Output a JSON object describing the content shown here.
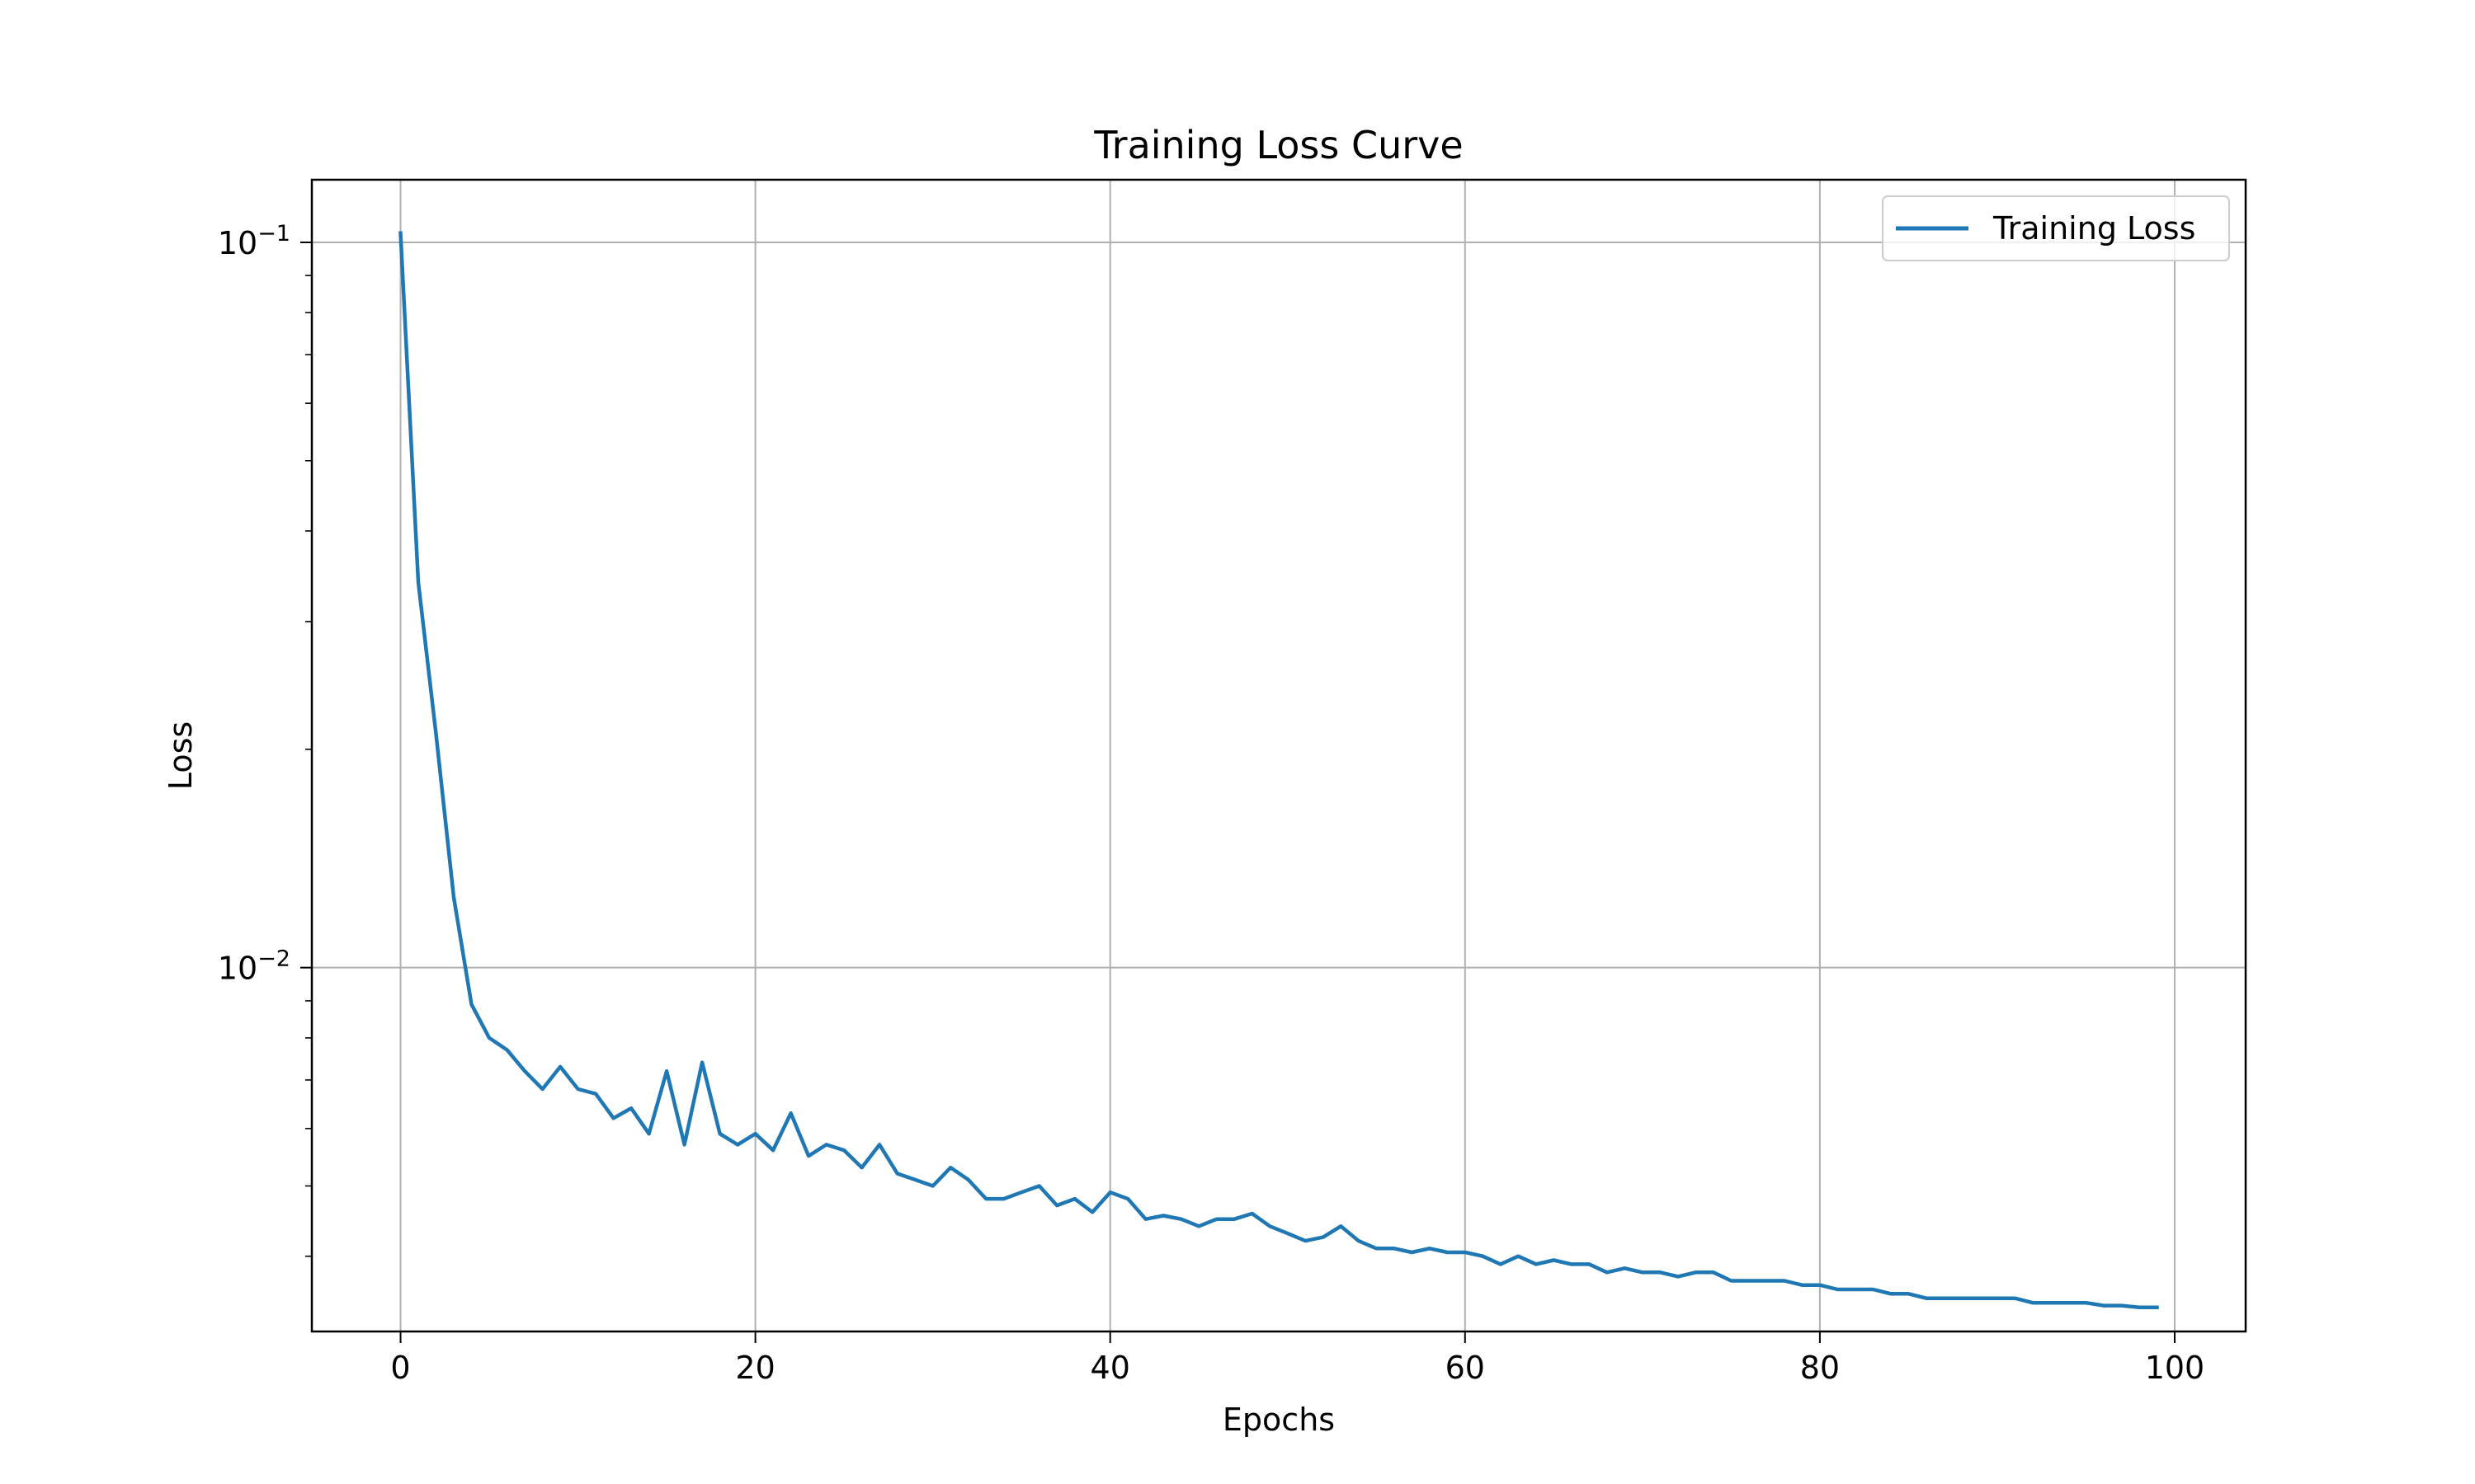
{
  "chart_data": {
    "type": "line",
    "title": "Training Loss Curve",
    "xlabel": "Epochs",
    "ylabel": "Loss",
    "yscale": "log",
    "xlim": [
      -5,
      104
    ],
    "ylim": [
      0.00315,
      0.122
    ],
    "grid": true,
    "legend_position": "top-right",
    "x_ticks": [
      0,
      20,
      40,
      60,
      80,
      100
    ],
    "x_tick_labels": [
      "0",
      "20",
      "40",
      "60",
      "80",
      "100"
    ],
    "y_ticks": [
      0.1,
      0.01
    ],
    "y_tick_labels": [
      {
        "base": "10",
        "exp": "−1"
      },
      {
        "base": "10",
        "exp": "−2"
      }
    ],
    "y_minor_ticks": [
      0.02,
      0.03,
      0.04,
      0.05,
      0.06,
      0.07,
      0.08,
      0.09,
      0.004,
      0.005,
      0.006,
      0.007,
      0.008,
      0.009
    ],
    "series": [
      {
        "name": "Training Loss",
        "color": "#1f77b4",
        "x": [
          0,
          1,
          2,
          3,
          4,
          5,
          6,
          7,
          8,
          9,
          10,
          11,
          12,
          13,
          14,
          15,
          16,
          17,
          18,
          19,
          20,
          21,
          22,
          23,
          24,
          25,
          26,
          27,
          28,
          29,
          30,
          31,
          32,
          33,
          34,
          35,
          36,
          37,
          38,
          39,
          40,
          41,
          42,
          43,
          44,
          45,
          46,
          47,
          48,
          49,
          50,
          51,
          52,
          53,
          54,
          55,
          56,
          57,
          58,
          59,
          60,
          61,
          62,
          63,
          64,
          65,
          66,
          67,
          68,
          69,
          70,
          71,
          72,
          73,
          74,
          75,
          76,
          77,
          78,
          79,
          80,
          81,
          82,
          83,
          84,
          85,
          86,
          87,
          88,
          89,
          90,
          91,
          92,
          93,
          94,
          95,
          96,
          97,
          98,
          99
        ],
        "values": [
          0.103,
          0.034,
          0.021,
          0.0125,
          0.0089,
          0.008,
          0.0077,
          0.0072,
          0.0068,
          0.0073,
          0.0068,
          0.0067,
          0.0062,
          0.0064,
          0.0059,
          0.0072,
          0.0057,
          0.0074,
          0.0059,
          0.0057,
          0.0059,
          0.0056,
          0.0063,
          0.0055,
          0.0057,
          0.0056,
          0.0053,
          0.0057,
          0.0052,
          0.0051,
          0.005,
          0.0053,
          0.0051,
          0.0048,
          0.0048,
          0.0049,
          0.005,
          0.0047,
          0.0048,
          0.0046,
          0.0049,
          0.0048,
          0.0045,
          0.00455,
          0.0045,
          0.0044,
          0.0045,
          0.0045,
          0.00458,
          0.0044,
          0.0043,
          0.0042,
          0.00425,
          0.0044,
          0.0042,
          0.0041,
          0.0041,
          0.00405,
          0.0041,
          0.00405,
          0.00405,
          0.004,
          0.0039,
          0.004,
          0.0039,
          0.00395,
          0.0039,
          0.0039,
          0.0038,
          0.00385,
          0.0038,
          0.0038,
          0.00375,
          0.0038,
          0.0038,
          0.0037,
          0.0037,
          0.0037,
          0.0037,
          0.00365,
          0.00365,
          0.0036,
          0.0036,
          0.0036,
          0.00355,
          0.00355,
          0.0035,
          0.0035,
          0.0035,
          0.0035,
          0.0035,
          0.0035,
          0.00345,
          0.00345,
          0.00345,
          0.00345,
          0.00342,
          0.00342,
          0.0034,
          0.0034
        ]
      }
    ]
  }
}
